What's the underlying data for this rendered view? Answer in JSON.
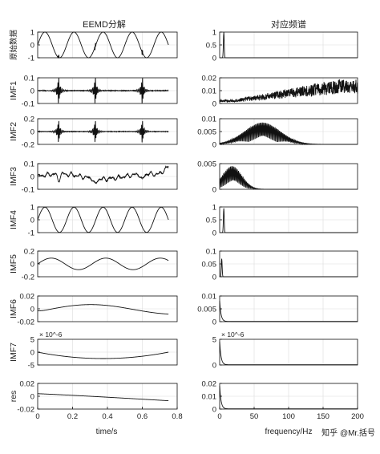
{
  "chart_data": {
    "type": "line",
    "left_title": "EEMD分解",
    "right_title": "对应频谱",
    "left_xlabel": "time/s",
    "right_xlabel": "frequency/Hz",
    "left_xlim": [
      0,
      0.8
    ],
    "left_xticks": [
      "0",
      "0.2",
      "0.4",
      "0.6",
      "0.8"
    ],
    "right_xlim": [
      0,
      200
    ],
    "right_xticks": [
      "0",
      "50",
      "100",
      "150",
      "200"
    ],
    "grid": true,
    "line_color": "#111111",
    "watermark": "知乎 @Mr.括号",
    "rows": [
      {
        "ylabel": "原始数据",
        "left": {
          "ylim": [
            -1,
            1
          ],
          "yticks": [
            "1",
            "0",
            "-1"
          ],
          "signal": "sine",
          "freq_hz": 6,
          "amplitude": 1,
          "spikes_at_s": [
            0.12,
            0.33,
            0.6
          ]
        },
        "right": {
          "ylim": [
            0,
            1
          ],
          "yticks": [
            "1",
            "0.5",
            "0"
          ],
          "peak_hz": 6,
          "peak_value": 1,
          "shape": "spike"
        }
      },
      {
        "ylabel": "IMF1",
        "left": {
          "ylim": [
            -0.1,
            0.1
          ],
          "yticks": [
            "0.1",
            "0",
            "-0.1"
          ],
          "signal": "bursts",
          "burst_at_s": [
            0.12,
            0.33,
            0.6
          ],
          "amplitude": 0.09
        },
        "right": {
          "ylim": [
            0,
            0.02
          ],
          "yticks": [
            "0.02",
            "0.01",
            "0"
          ],
          "shape": "rising_noise",
          "from_value": 0.002,
          "to_value": 0.013
        }
      },
      {
        "ylabel": "IMF2",
        "left": {
          "ylim": [
            -0.2,
            0.2
          ],
          "yticks": [
            "0.2",
            "0",
            "-0.2"
          ],
          "signal": "bursts",
          "burst_at_s": [
            0.12,
            0.33,
            0.6
          ],
          "amplitude": 0.15
        },
        "right": {
          "ylim": [
            0,
            0.01
          ],
          "yticks": [
            "0.01",
            "0.005",
            "0"
          ],
          "shape": "band",
          "center_hz": 62,
          "width_hz": 26,
          "peak_value": 0.0085
        }
      },
      {
        "ylabel": "IMF3",
        "left": {
          "ylim": [
            -0.1,
            0.1
          ],
          "yticks": [
            "0.1",
            "0",
            "-0.1"
          ],
          "signal": "wavy",
          "amplitude": 0.03,
          "end_value": 0.08
        },
        "right": {
          "ylim": [
            0,
            0.005
          ],
          "yticks": [
            "0.005",
            "0"
          ],
          "shape": "band",
          "center_hz": 18,
          "width_hz": 14,
          "peak_value": 0.0045
        }
      },
      {
        "ylabel": "IMF4",
        "left": {
          "ylim": [
            -1,
            1
          ],
          "yticks": [
            "1",
            "0",
            "-1"
          ],
          "signal": "sine",
          "freq_hz": 6,
          "amplitude": 0.98,
          "spikes_at_s": []
        },
        "right": {
          "ylim": [
            0,
            1
          ],
          "yticks": [
            "1",
            "0.5",
            "0"
          ],
          "peak_hz": 6,
          "peak_value": 0.95,
          "shape": "spike"
        }
      },
      {
        "ylabel": "IMF5",
        "left": {
          "ylim": [
            -0.2,
            0.2
          ],
          "yticks": [
            "0.2",
            "0",
            "-0.2"
          ],
          "signal": "sine",
          "freq_hz": 3.2,
          "amplitude": 0.09,
          "spikes_at_s": []
        },
        "right": {
          "ylim": [
            0,
            0.1
          ],
          "yticks": [
            "0.1",
            "0.05",
            "0"
          ],
          "peak_hz": 3,
          "peak_value": 0.07,
          "shape": "spike"
        }
      },
      {
        "ylabel": "IMF6",
        "left": {
          "ylim": [
            -0.02,
            0.02
          ],
          "yticks": [
            "0.02",
            "0",
            "-0.02"
          ],
          "signal": "slow_wave",
          "amplitude": 0.008
        },
        "right": {
          "ylim": [
            0,
            0.01
          ],
          "yticks": [
            "0.01",
            "0.005",
            "0"
          ],
          "peak_hz": 1,
          "peak_value": 0.008,
          "shape": "decay"
        }
      },
      {
        "ylabel": "IMF7",
        "left": {
          "ylim": [
            -5,
            5
          ],
          "yticks": [
            "5",
            "0",
            "-5"
          ],
          "exponent": "× 10^-6",
          "signal": "bowl",
          "start_value": 0,
          "min_value": -2.5,
          "end_value": 0
        },
        "right": {
          "ylim": [
            0,
            5
          ],
          "yticks": [
            "5",
            "0"
          ],
          "exponent": "× 10^-6",
          "peak_hz": 0.5,
          "peak_value": 4.5,
          "shape": "decay"
        }
      },
      {
        "ylabel": "res",
        "left": {
          "ylim": [
            -0.02,
            0.02
          ],
          "yticks": [
            "0.02",
            "0",
            "-0.02"
          ],
          "signal": "declining",
          "start_value": 0.004,
          "end_value": -0.007
        },
        "right": {
          "ylim": [
            0,
            0.02
          ],
          "yticks": [
            "0.02",
            "0.01",
            "0"
          ],
          "peak_hz": 0.5,
          "peak_value": 0.018,
          "shape": "decay"
        }
      }
    ]
  }
}
